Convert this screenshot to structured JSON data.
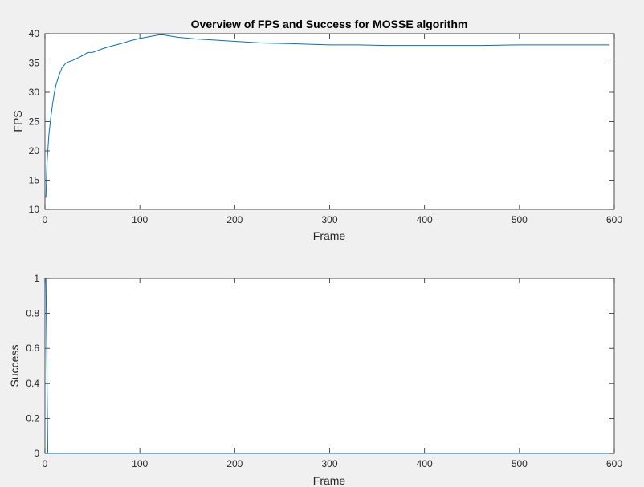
{
  "figure": {
    "background": "#f0f0f0",
    "line_color": "#0072bd"
  },
  "chart_data": [
    {
      "type": "line",
      "title": "Overview of FPS and Success for MOSSE algorithm",
      "xlabel": "Frame",
      "ylabel": "FPS",
      "xlim": [
        0,
        600
      ],
      "ylim": [
        10,
        40
      ],
      "xticks": [
        0,
        100,
        200,
        300,
        400,
        500,
        600
      ],
      "yticks": [
        10,
        15,
        20,
        25,
        30,
        35,
        40
      ],
      "grid": false,
      "series": [
        {
          "x": [
            1,
            2,
            4,
            6,
            8,
            10,
            12,
            15,
            18,
            22,
            25,
            30,
            35,
            40,
            45,
            50,
            55,
            60,
            70,
            80,
            90,
            100,
            110,
            120,
            125,
            140,
            160,
            180,
            200,
            230,
            260,
            300,
            330,
            360,
            400,
            430,
            460,
            500,
            550,
            595
          ],
          "y": [
            12.0,
            17.5,
            22.5,
            25.5,
            28.0,
            30.0,
            31.5,
            33.0,
            34.2,
            35.0,
            35.2,
            35.5,
            35.9,
            36.3,
            36.8,
            36.8,
            37.1,
            37.4,
            37.9,
            38.3,
            38.8,
            39.2,
            39.5,
            39.8,
            39.8,
            39.4,
            39.1,
            38.9,
            38.7,
            38.4,
            38.3,
            38.1,
            38.1,
            38.0,
            38.0,
            38.0,
            38.0,
            38.1,
            38.1,
            38.1
          ]
        }
      ]
    },
    {
      "type": "line",
      "title": "",
      "xlabel": "Frame",
      "ylabel": "Success",
      "xlim": [
        0,
        600
      ],
      "ylim": [
        0,
        1
      ],
      "xticks": [
        0,
        100,
        200,
        300,
        400,
        500,
        600
      ],
      "yticks": [
        0,
        0.2,
        0.4,
        0.6,
        0.8,
        1
      ],
      "grid": false,
      "series": [
        {
          "x": [
            1,
            2,
            3,
            4,
            100,
            200,
            300,
            400,
            500,
            595
          ],
          "y": [
            1,
            0.5,
            0,
            0,
            0,
            0,
            0,
            0,
            0,
            0
          ]
        }
      ]
    }
  ]
}
